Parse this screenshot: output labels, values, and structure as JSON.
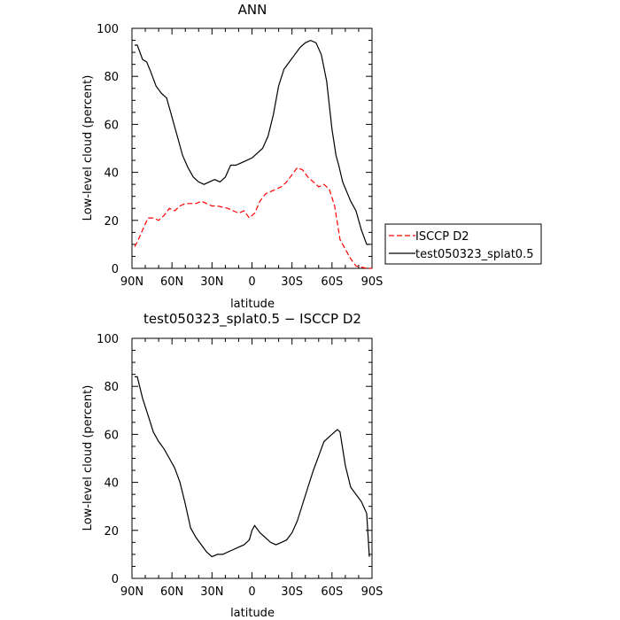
{
  "chart_data": [
    {
      "type": "line",
      "title": "ANN",
      "xlabel": "latitude",
      "ylabel": "Low-level cloud (percent)",
      "xlim": [
        90,
        -90
      ],
      "ylim": [
        0,
        100
      ],
      "xticks": [
        90,
        60,
        30,
        0,
        -30,
        -60,
        -90
      ],
      "xtick_labels": [
        "90N",
        "60N",
        "30N",
        "0",
        "30S",
        "60S",
        "90S"
      ],
      "yticks": [
        0,
        20,
        40,
        60,
        80,
        100
      ],
      "ytick_labels": [
        "0",
        "20",
        "40",
        "60",
        "80",
        "100"
      ],
      "legend_position": "right",
      "series": [
        {
          "name": "ISCCP D2",
          "color": "#ff0000",
          "style": "dashed",
          "x": [
            88,
            86,
            82,
            78,
            74,
            70,
            66,
            62,
            58,
            54,
            50,
            46,
            42,
            38,
            34,
            30,
            26,
            22,
            18,
            14,
            10,
            6,
            2,
            -2,
            -6,
            -10,
            -14,
            -18,
            -22,
            -26,
            -30,
            -34,
            -38,
            -42,
            -46,
            -50,
            -54,
            -58,
            -62,
            -66,
            -70,
            -74,
            -78,
            -82,
            -86,
            -90
          ],
          "y": [
            9,
            11,
            16,
            21,
            21,
            20,
            22,
            25,
            24,
            26,
            27,
            27,
            27,
            28,
            27,
            26,
            26,
            25.5,
            25,
            24,
            23,
            24,
            21,
            23,
            28,
            31,
            32,
            33,
            34,
            36,
            39,
            42,
            41,
            38,
            36,
            34,
            35,
            33,
            26,
            12,
            8,
            4,
            1,
            0.5,
            0,
            0
          ]
        },
        {
          "name": "test050323_splat0.5",
          "color": "#000000",
          "style": "solid",
          "x": [
            88,
            86,
            82,
            79,
            76,
            72,
            68,
            64,
            60,
            56,
            52,
            48,
            44,
            40,
            36,
            32,
            28,
            24,
            20,
            16,
            12,
            8,
            4,
            0,
            -4,
            -8,
            -12,
            -16,
            -20,
            -24,
            -28,
            -32,
            -36,
            -40,
            -44,
            -48,
            -52,
            -56,
            -60,
            -63,
            -65,
            -68,
            -71,
            -74,
            -78,
            -82,
            -86,
            -88
          ],
          "y": [
            93,
            93,
            87,
            86,
            82,
            76,
            73,
            71,
            63,
            55,
            47,
            42,
            38,
            36,
            35,
            36,
            37,
            36,
            38,
            43,
            43,
            44,
            45,
            46,
            48,
            50,
            55,
            64,
            76,
            83,
            86,
            89,
            92,
            94,
            95,
            94,
            89,
            78,
            58,
            47,
            43,
            36,
            32,
            28,
            24,
            16,
            10,
            10
          ]
        }
      ]
    },
    {
      "type": "line",
      "title": "test050323_splat0.5 − ISCCP D2",
      "xlabel": "latitude",
      "ylabel": "Low-level cloud (percent)",
      "xlim": [
        90,
        -90
      ],
      "ylim": [
        0,
        100
      ],
      "xticks": [
        90,
        60,
        30,
        0,
        -30,
        -60,
        -90
      ],
      "xtick_labels": [
        "90N",
        "60N",
        "30N",
        "0",
        "30S",
        "60S",
        "90S"
      ],
      "yticks": [
        0,
        20,
        40,
        60,
        80,
        100
      ],
      "ytick_labels": [
        "0",
        "20",
        "40",
        "60",
        "80",
        "100"
      ],
      "series": [
        {
          "color": "#000000",
          "style": "solid",
          "x": [
            88,
            86,
            82,
            78,
            74,
            70,
            66,
            62,
            58,
            54,
            50,
            46,
            42,
            38,
            34,
            30,
            26,
            22,
            18,
            14,
            10,
            6,
            2,
            0,
            -2,
            -6,
            -10,
            -14,
            -18,
            -22,
            -26,
            -30,
            -34,
            -38,
            -42,
            -46,
            -50,
            -54,
            -58,
            -62,
            -64,
            -66,
            -70,
            -74,
            -78,
            -82,
            -86,
            -88
          ],
          "y": [
            84,
            84,
            75,
            68,
            61,
            57,
            54,
            50,
            46,
            40,
            31,
            21,
            17,
            14,
            11,
            9,
            10,
            10,
            11,
            12,
            13,
            14,
            16,
            20,
            22,
            19,
            17,
            15,
            14,
            15,
            16,
            19,
            24,
            31,
            38,
            45,
            51,
            57,
            59,
            61,
            62,
            61,
            47,
            38,
            35,
            32,
            27,
            9
          ]
        }
      ]
    }
  ]
}
